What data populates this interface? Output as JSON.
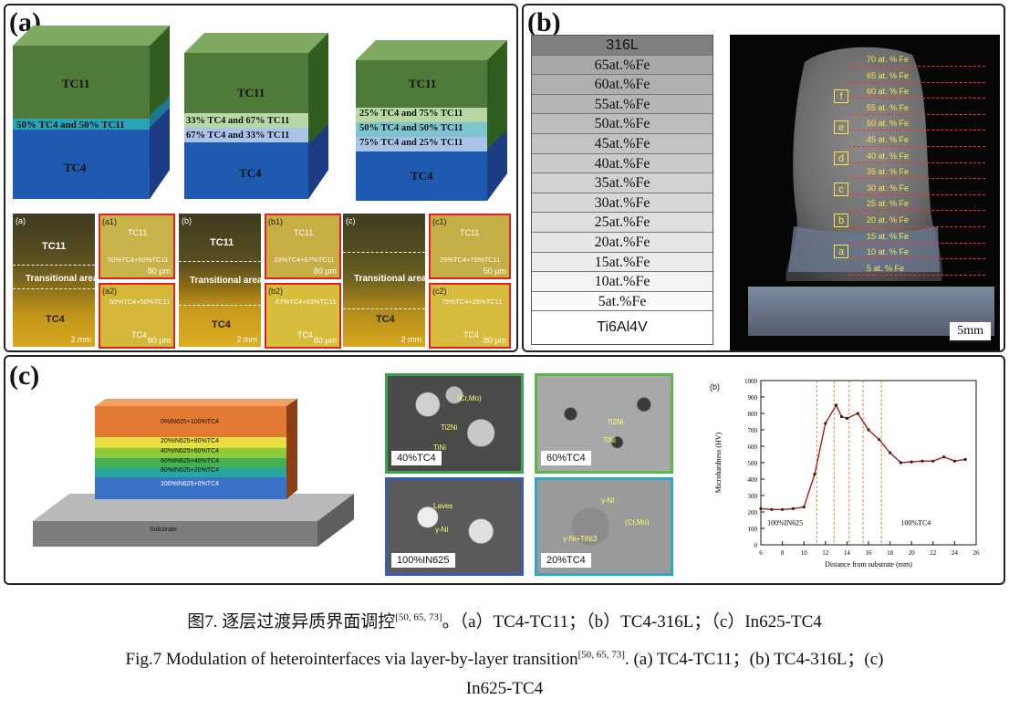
{
  "panel_a": {
    "label": "(a)",
    "blocks": [
      {
        "top": "TC11",
        "mid": [
          "50% TC4 and 50% TC11"
        ],
        "bottom": "TC4"
      },
      {
        "top": "TC11",
        "mid": [
          "33% TC4 and 67% TC11",
          "67% TC4 and 33% TC11"
        ],
        "bottom": "TC4"
      },
      {
        "top": "TC11",
        "mid": [
          "25% TC4 and 75% TC11",
          "50% TC4 and 50% TC11",
          "75% TC4 and 25% TC11"
        ],
        "bottom": "TC4"
      }
    ],
    "micrographs": [
      {
        "tag": "(a)",
        "top": "TC11",
        "mid": "Transitional area",
        "bottom": "TC4",
        "scale": "2 mm",
        "z1": {
          "tag": "(a1)",
          "t1": "TC11",
          "t2": "50%TC4+50%TC11",
          "scale": "80 μm"
        },
        "z2": {
          "tag": "(a2)",
          "t1": "50%TC4+50%TC11",
          "t2": "TC4",
          "scale": "80 μm"
        }
      },
      {
        "tag": "(b)",
        "top": "TC11",
        "mid": "Transitional area",
        "bottom": "TC4",
        "scale": "2 mm",
        "z1": {
          "tag": "(b1)",
          "t1": "TC11",
          "t2": "33%TC4+67%TC11",
          "scale": "80 μm"
        },
        "z2": {
          "tag": "(b2)",
          "t1": "67%TC4+33%TC11",
          "t2": "TC4",
          "scale": "80 μm"
        }
      },
      {
        "tag": "(c)",
        "top": "",
        "mid": "Transitional area",
        "bottom": "TC4",
        "scale": "2 mm",
        "z1": {
          "tag": "(c1)",
          "t1": "TC11",
          "t2": "25%TC4+75%TC11",
          "scale": "50 μm"
        },
        "z2": {
          "tag": "(c2)",
          "t1": "75%TC4+25%TC11",
          "t2": "TC4",
          "scale": "80 μm"
        }
      }
    ]
  },
  "panel_b": {
    "label": "(b)",
    "stack": [
      "316L",
      "65at.%Fe",
      "60at.%Fe",
      "55at.%Fe",
      "50at.%Fe",
      "45at.%Fe",
      "40at.%Fe",
      "35at.%Fe",
      "30at.%Fe",
      "25at.%Fe",
      "20at.%Fe",
      "15at.%Fe",
      "10at.%Fe",
      "5at.%Fe",
      "Ti6Al4V"
    ],
    "photo_labels": [
      "70 at. % Fe",
      "65 at. % Fe",
      "60 at. % Fe",
      "55 at. % Fe",
      "50 at. % Fe",
      "45 at. % Fe",
      "40 at. % Fe",
      "35 at. % Fe",
      "30 at. % Fe",
      "25 at. % Fe",
      "20 at. % Fe",
      "15 at. % Fe",
      "10 at. % Fe",
      "5 at. % Fe"
    ],
    "boxes": [
      "f",
      "e",
      "d",
      "c",
      "b",
      "a"
    ],
    "scale": "5mm"
  },
  "panel_c": {
    "label": "(c)",
    "layers": [
      "0%IN625+100%TC4",
      "20%IN625+80%TC4",
      "40%IN625+60%TC4",
      "60%IN625+40%TC4",
      "80%IN625+20%TC4",
      "100%IN625+0%TC4"
    ],
    "substrate": "Substrate",
    "sem": [
      {
        "tag": "40%TC4",
        "labels": [
          "(Cr,Mo)",
          "Ti2Ni",
          "TiNi"
        ],
        "color": "#3aa64a"
      },
      {
        "tag": "60%TC4",
        "labels": [
          "Ti2Ni",
          "TiNi"
        ],
        "color": "#58b848"
      },
      {
        "tag": "100%IN625",
        "labels": [
          "Laves",
          "γ-Ni"
        ],
        "color": "#3b5bb5"
      },
      {
        "tag": "20%TC4",
        "labels": [
          "γ-Ni",
          "(Cr,Mo)",
          "γ-Ni+TiNi3"
        ],
        "color": "#2ea6c8"
      }
    ],
    "chart_tag": "(b)"
  },
  "chart_data": {
    "type": "line",
    "x": [
      6,
      7,
      8,
      9,
      10,
      11,
      12,
      13,
      13.5,
      14,
      15,
      16,
      17,
      18,
      19,
      20,
      21,
      22,
      23,
      24,
      25
    ],
    "series": [
      {
        "values": [
          220,
          215,
          215,
          220,
          230,
          430,
          740,
          850,
          780,
          770,
          800,
          700,
          640,
          560,
          500,
          505,
          510,
          510,
          535,
          510,
          520
        ]
      }
    ],
    "xlabel": "Distance from substrate (mm)",
    "ylabel": "Microhardness (HV)",
    "xlim": [
      6,
      26
    ],
    "ylim": [
      0,
      1000
    ],
    "xticks": [
      6,
      8,
      10,
      12,
      14,
      16,
      18,
      20,
      22,
      24,
      26
    ],
    "yticks": [
      0,
      100,
      200,
      300,
      400,
      500,
      600,
      700,
      800,
      900,
      1000
    ],
    "vlines": [
      11.2,
      12.8,
      14.2,
      15.5,
      17.2
    ],
    "annotations": [
      "100%IN625",
      "100%TC4"
    ],
    "color": "#b01818"
  },
  "caption": {
    "cn": "图7. 逐层过渡异质界面调控",
    "refs": "[50, 65, 73]",
    "cn_rest": "。（a）TC4-TC11；（b）TC4-316L；（c）In625-TC4",
    "en": "Fig.7 Modulation of heterointerfaces via layer-by-layer transition",
    "en_rest": ". (a) TC4-TC11；(b) TC4-316L；(c)",
    "en_line2": "In625-TC4"
  }
}
